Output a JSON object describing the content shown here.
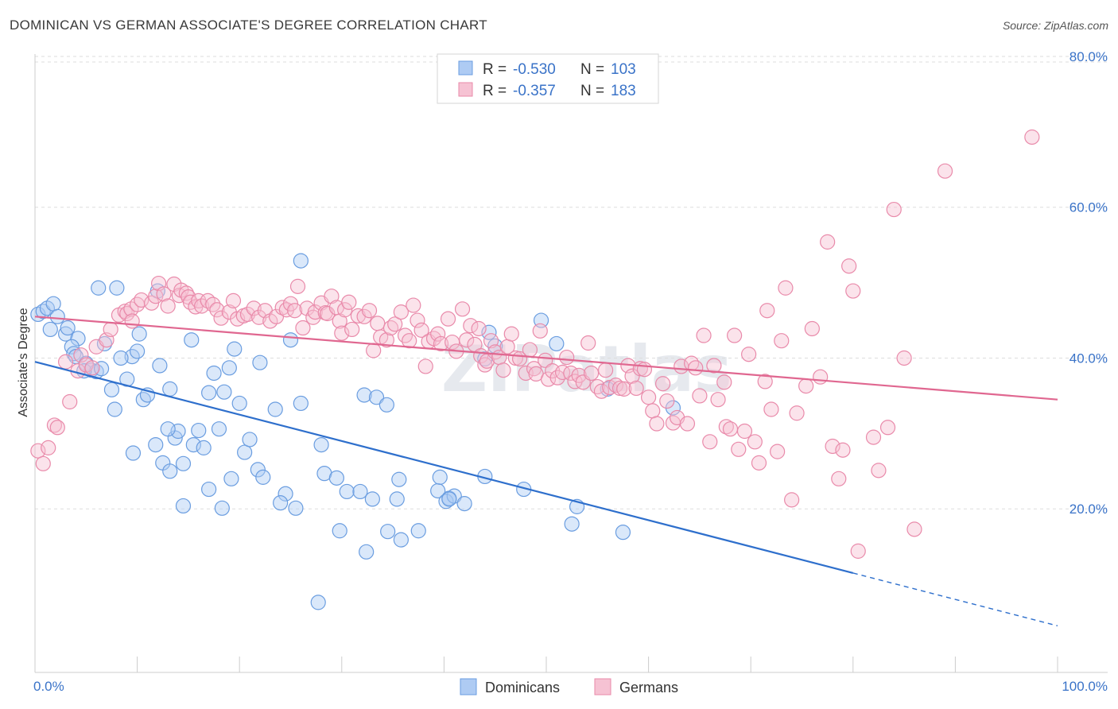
{
  "title": "DOMINICAN VS GERMAN ASSOCIATE'S DEGREE CORRELATION CHART",
  "source": "Source: ZipAtlas.com",
  "watermark": "ZIPatlas",
  "colors": {
    "blue_fill": "#aecbf3",
    "blue_stroke": "#6a9de0",
    "blue_line": "#2e6fcc",
    "pink_fill": "#f6c2d3",
    "pink_stroke": "#e98aaa",
    "pink_line": "#e06790",
    "tick": "#3a73c8",
    "grid": "#dddddd"
  },
  "legend": {
    "rows": [
      {
        "r_label": "R =",
        "r_value": "-0.530",
        "n_label": "N =",
        "n_value": "103"
      },
      {
        "r_label": "R =",
        "r_value": "-0.357",
        "n_label": "N =",
        "n_value": "183"
      }
    ]
  },
  "bottom_legend": [
    "Dominicans",
    "Germans"
  ],
  "chart_data": {
    "type": "scatter",
    "title": "DOMINICAN VS GERMAN ASSOCIATE'S DEGREE CORRELATION CHART",
    "xlabel": "",
    "ylabel": "Associate's Degree",
    "xlim": [
      0,
      100
    ],
    "ylim": [
      0,
      82
    ],
    "x_tick_labels": [
      "0.0%",
      "100.0%"
    ],
    "y_ticks": [
      20,
      40,
      60,
      80
    ],
    "y_tick_labels": [
      "20.0%",
      "40.0%",
      "60.0%",
      "80.0%"
    ],
    "grid": true,
    "legend_position": "top-center",
    "series": [
      {
        "name": "Dominicans",
        "r": -0.53,
        "n": 103,
        "trend": {
          "x0": 0,
          "y0": 39.5,
          "x1": 80,
          "y1": 11.5,
          "dash_to_x": 100,
          "dash_to_y": 4.5
        },
        "points": [
          [
            0.3,
            45.8
          ],
          [
            0.8,
            46.2
          ],
          [
            1.2,
            46.6
          ],
          [
            1.8,
            47.2
          ],
          [
            2.2,
            45.5
          ],
          [
            1.5,
            43.8
          ],
          [
            3.0,
            43.2
          ],
          [
            3.2,
            44.0
          ],
          [
            4.2,
            42.6
          ],
          [
            3.6,
            41.5
          ],
          [
            3.8,
            40.6
          ],
          [
            4.0,
            40.2
          ],
          [
            5.0,
            39.3
          ],
          [
            5.5,
            38.4
          ],
          [
            6.0,
            38.2
          ],
          [
            6.5,
            38.6
          ],
          [
            4.8,
            38.3
          ],
          [
            6.8,
            41.9
          ],
          [
            7.5,
            35.8
          ],
          [
            7.8,
            33.2
          ],
          [
            9.0,
            37.2
          ],
          [
            9.5,
            40.2
          ],
          [
            10.2,
            43.2
          ],
          [
            10.0,
            40.9
          ],
          [
            8.4,
            40.0
          ],
          [
            10.6,
            34.5
          ],
          [
            11.0,
            35.1
          ],
          [
            12.0,
            48.9
          ],
          [
            6.2,
            49.3
          ],
          [
            8.0,
            49.3
          ],
          [
            12.2,
            39.0
          ],
          [
            13.2,
            35.9
          ],
          [
            13.7,
            29.4
          ],
          [
            14.0,
            30.3
          ],
          [
            13.0,
            30.6
          ],
          [
            9.6,
            27.4
          ],
          [
            11.8,
            28.5
          ],
          [
            12.5,
            26.1
          ],
          [
            13.2,
            25.0
          ],
          [
            14.5,
            26.0
          ],
          [
            15.5,
            28.5
          ],
          [
            16.0,
            30.4
          ],
          [
            16.5,
            28.1
          ],
          [
            17.0,
            35.4
          ],
          [
            18.5,
            35.5
          ],
          [
            17.5,
            38.0
          ],
          [
            19.0,
            38.7
          ],
          [
            19.5,
            41.2
          ],
          [
            15.3,
            42.4
          ],
          [
            18.0,
            30.6
          ],
          [
            20.0,
            34.0
          ],
          [
            20.5,
            27.5
          ],
          [
            21.0,
            29.2
          ],
          [
            22.0,
            39.4
          ],
          [
            21.8,
            25.2
          ],
          [
            22.3,
            24.2
          ],
          [
            23.5,
            33.2
          ],
          [
            24.5,
            22.0
          ],
          [
            24.0,
            20.8
          ],
          [
            25.5,
            20.1
          ],
          [
            18.3,
            20.1
          ],
          [
            14.5,
            20.4
          ],
          [
            17.0,
            22.6
          ],
          [
            19.2,
            24.0
          ],
          [
            25.0,
            42.4
          ],
          [
            26.0,
            34.0
          ],
          [
            26.0,
            52.9
          ],
          [
            28.0,
            28.5
          ],
          [
            28.3,
            24.7
          ],
          [
            29.5,
            24.1
          ],
          [
            29.8,
            17.1
          ],
          [
            30.5,
            22.3
          ],
          [
            31.8,
            22.3
          ],
          [
            32.2,
            35.1
          ],
          [
            33.4,
            34.8
          ],
          [
            32.4,
            14.3
          ],
          [
            33.0,
            21.3
          ],
          [
            34.4,
            33.8
          ],
          [
            34.5,
            17.0
          ],
          [
            35.4,
            21.3
          ],
          [
            35.6,
            23.9
          ],
          [
            35.8,
            15.9
          ],
          [
            37.5,
            17.1
          ],
          [
            39.4,
            22.4
          ],
          [
            39.6,
            24.2
          ],
          [
            40.5,
            21.4
          ],
          [
            40.2,
            21.0
          ],
          [
            41.0,
            21.7
          ],
          [
            42.0,
            20.7
          ],
          [
            40.5,
            21.3
          ],
          [
            44.0,
            24.3
          ],
          [
            44.0,
            39.9
          ],
          [
            45.0,
            41.6
          ],
          [
            44.4,
            43.4
          ],
          [
            47.8,
            22.6
          ],
          [
            49.5,
            45.0
          ],
          [
            51.0,
            41.9
          ],
          [
            52.5,
            18.0
          ],
          [
            53.0,
            20.3
          ],
          [
            56.0,
            35.9
          ],
          [
            62.4,
            33.4
          ],
          [
            57.5,
            16.9
          ],
          [
            27.7,
            7.6
          ]
        ]
      },
      {
        "name": "Germans",
        "r": -0.357,
        "n": 183,
        "trend": {
          "x0": 0,
          "y0": 45.5,
          "x1": 100,
          "y1": 34.5
        },
        "points": [
          [
            0.3,
            27.7
          ],
          [
            0.8,
            26.0
          ],
          [
            1.3,
            28.1
          ],
          [
            1.9,
            31.1
          ],
          [
            2.2,
            30.8
          ],
          [
            3.0,
            39.5
          ],
          [
            3.4,
            34.2
          ],
          [
            4.2,
            38.3
          ],
          [
            4.5,
            40.4
          ],
          [
            5.0,
            39.1
          ],
          [
            5.6,
            38.7
          ],
          [
            6.0,
            41.5
          ],
          [
            7.0,
            42.4
          ],
          [
            7.4,
            43.8
          ],
          [
            8.2,
            45.7
          ],
          [
            8.8,
            46.2
          ],
          [
            9.0,
            45.9
          ],
          [
            9.4,
            46.5
          ],
          [
            9.5,
            44.9
          ],
          [
            10.0,
            47.1
          ],
          [
            10.4,
            47.7
          ],
          [
            11.4,
            47.3
          ],
          [
            11.8,
            48.2
          ],
          [
            12.1,
            49.9
          ],
          [
            12.6,
            48.5
          ],
          [
            13.0,
            46.9
          ],
          [
            13.6,
            49.8
          ],
          [
            14.1,
            48.3
          ],
          [
            14.3,
            49.0
          ],
          [
            14.8,
            48.6
          ],
          [
            15.0,
            48.1
          ],
          [
            15.2,
            47.4
          ],
          [
            15.7,
            46.8
          ],
          [
            16.0,
            47.6
          ],
          [
            16.3,
            46.9
          ],
          [
            16.9,
            47.6
          ],
          [
            17.4,
            47.1
          ],
          [
            17.8,
            46.4
          ],
          [
            18.2,
            45.3
          ],
          [
            19.0,
            46.1
          ],
          [
            19.4,
            47.6
          ],
          [
            19.8,
            45.2
          ],
          [
            20.4,
            45.6
          ],
          [
            20.8,
            45.8
          ],
          [
            21.4,
            46.6
          ],
          [
            21.9,
            45.4
          ],
          [
            22.5,
            46.3
          ],
          [
            23.0,
            44.9
          ],
          [
            23.6,
            45.5
          ],
          [
            24.2,
            46.7
          ],
          [
            24.6,
            46.4
          ],
          [
            25.0,
            47.2
          ],
          [
            25.4,
            46.3
          ],
          [
            25.7,
            49.5
          ],
          [
            26.2,
            44.0
          ],
          [
            26.6,
            46.6
          ],
          [
            27.2,
            45.4
          ],
          [
            27.4,
            46.1
          ],
          [
            28.0,
            47.3
          ],
          [
            28.4,
            46.0
          ],
          [
            28.6,
            45.9
          ],
          [
            29.0,
            48.2
          ],
          [
            29.5,
            46.7
          ],
          [
            29.8,
            44.9
          ],
          [
            30.0,
            43.3
          ],
          [
            30.3,
            46.4
          ],
          [
            30.7,
            47.4
          ],
          [
            31.0,
            43.8
          ],
          [
            31.6,
            45.6
          ],
          [
            32.2,
            45.5
          ],
          [
            32.7,
            46.3
          ],
          [
            33.1,
            41.0
          ],
          [
            33.5,
            44.6
          ],
          [
            33.8,
            42.8
          ],
          [
            34.4,
            42.4
          ],
          [
            34.8,
            44.0
          ],
          [
            35.2,
            44.5
          ],
          [
            35.8,
            46.1
          ],
          [
            36.2,
            43.0
          ],
          [
            36.6,
            42.3
          ],
          [
            37.0,
            47.0
          ],
          [
            37.4,
            45.0
          ],
          [
            37.8,
            43.7
          ],
          [
            38.2,
            38.9
          ],
          [
            38.5,
            42.2
          ],
          [
            39.0,
            42.6
          ],
          [
            39.4,
            43.2
          ],
          [
            39.7,
            41.9
          ],
          [
            40.4,
            45.2
          ],
          [
            40.8,
            42.1
          ],
          [
            41.2,
            40.9
          ],
          [
            41.8,
            46.5
          ],
          [
            42.2,
            42.4
          ],
          [
            42.6,
            44.3
          ],
          [
            43.0,
            41.8
          ],
          [
            43.4,
            43.9
          ],
          [
            43.6,
            40.3
          ],
          [
            44.0,
            39.1
          ],
          [
            44.2,
            39.6
          ],
          [
            44.6,
            42.3
          ],
          [
            45.0,
            40.8
          ],
          [
            45.4,
            40.1
          ],
          [
            45.8,
            38.4
          ],
          [
            46.2,
            41.5
          ],
          [
            46.6,
            43.2
          ],
          [
            47.0,
            40.0
          ],
          [
            47.4,
            39.9
          ],
          [
            48.0,
            38.0
          ],
          [
            48.4,
            41.1
          ],
          [
            48.8,
            38.6
          ],
          [
            49.0,
            37.9
          ],
          [
            49.4,
            43.6
          ],
          [
            49.9,
            39.7
          ],
          [
            50.2,
            37.2
          ],
          [
            50.6,
            38.3
          ],
          [
            51.1,
            37.4
          ],
          [
            51.6,
            38.1
          ],
          [
            52.0,
            40.1
          ],
          [
            52.4,
            38.0
          ],
          [
            52.8,
            36.9
          ],
          [
            53.2,
            37.7
          ],
          [
            53.6,
            36.8
          ],
          [
            54.1,
            42.0
          ],
          [
            54.4,
            38.0
          ],
          [
            55.0,
            36.2
          ],
          [
            55.4,
            35.6
          ],
          [
            55.8,
            38.4
          ],
          [
            56.2,
            36.1
          ],
          [
            56.8,
            36.4
          ],
          [
            57.2,
            36.0
          ],
          [
            57.6,
            35.9
          ],
          [
            58.0,
            39.0
          ],
          [
            58.4,
            37.6
          ],
          [
            58.8,
            36.0
          ],
          [
            59.2,
            38.6
          ],
          [
            59.6,
            38.5
          ],
          [
            60.0,
            34.8
          ],
          [
            60.4,
            33.0
          ],
          [
            60.8,
            31.3
          ],
          [
            61.4,
            36.6
          ],
          [
            61.8,
            34.3
          ],
          [
            62.4,
            31.4
          ],
          [
            62.8,
            32.1
          ],
          [
            63.2,
            38.9
          ],
          [
            63.8,
            31.3
          ],
          [
            64.2,
            39.3
          ],
          [
            64.6,
            38.7
          ],
          [
            65.0,
            35.0
          ],
          [
            65.4,
            43.0
          ],
          [
            66.0,
            28.9
          ],
          [
            66.4,
            39.0
          ],
          [
            66.8,
            34.5
          ],
          [
            67.4,
            36.8
          ],
          [
            67.6,
            30.9
          ],
          [
            68.0,
            30.6
          ],
          [
            68.4,
            43.0
          ],
          [
            68.8,
            27.9
          ],
          [
            69.4,
            30.3
          ],
          [
            69.8,
            40.5
          ],
          [
            70.4,
            28.9
          ],
          [
            70.8,
            26.1
          ],
          [
            71.4,
            36.9
          ],
          [
            71.6,
            46.3
          ],
          [
            72.0,
            33.2
          ],
          [
            72.6,
            27.6
          ],
          [
            73.0,
            42.3
          ],
          [
            73.4,
            49.3
          ],
          [
            74.0,
            21.2
          ],
          [
            74.5,
            32.7
          ],
          [
            75.4,
            36.3
          ],
          [
            76.0,
            43.9
          ],
          [
            76.8,
            37.5
          ],
          [
            77.5,
            55.4
          ],
          [
            78.0,
            28.3
          ],
          [
            78.6,
            24.0
          ],
          [
            79.0,
            27.8
          ],
          [
            79.6,
            52.2
          ],
          [
            80.0,
            48.9
          ],
          [
            80.5,
            14.4
          ],
          [
            82.0,
            29.5
          ],
          [
            82.5,
            25.1
          ],
          [
            83.4,
            30.8
          ],
          [
            84.0,
            59.7
          ],
          [
            85.0,
            40.0
          ],
          [
            86.0,
            17.3
          ],
          [
            89.0,
            64.8
          ],
          [
            97.5,
            69.3
          ]
        ]
      }
    ]
  }
}
